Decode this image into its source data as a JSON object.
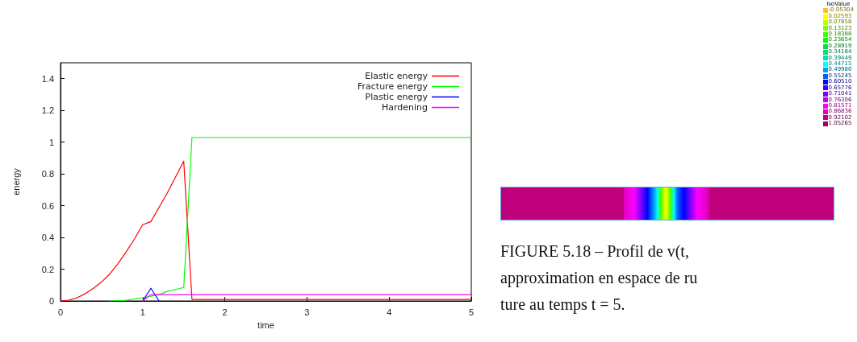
{
  "chart_data": [
    {
      "type": "line",
      "xlabel": "time",
      "ylabel": "energy",
      "xlim": [
        0,
        5
      ],
      "xticks": [
        0,
        1,
        2,
        3,
        4,
        5
      ],
      "ylim": [
        0,
        1.5
      ],
      "yticks": [
        0,
        0.2,
        0.4,
        0.6,
        0.8,
        1,
        1.2,
        1.4
      ],
      "grid": false,
      "legend": "top right",
      "marker": "none",
      "line_style": "solid",
      "series": [
        {
          "name": "Elastic energy",
          "color": "#ff0000",
          "x": [
            0,
            0.1,
            0.2,
            0.3,
            0.4,
            0.5,
            0.6,
            0.7,
            0.8,
            0.9,
            1.0,
            1.1,
            1.2,
            1.3,
            1.4,
            1.5,
            1.6,
            5
          ],
          "values": [
            0,
            0.005,
            0.02,
            0.045,
            0.08,
            0.12,
            0.17,
            0.235,
            0.31,
            0.39,
            0.48,
            0.5,
            0.59,
            0.68,
            0.78,
            0.88,
            0.01,
            0.01
          ]
        },
        {
          "name": "Fracture energy",
          "color": "#00ff00",
          "x": [
            0.6,
            0.8,
            1.0,
            1.1,
            1.2,
            1.3,
            1.5,
            1.6,
            5
          ],
          "values": [
            0,
            0.005,
            0.02,
            0.03,
            0.04,
            0.06,
            0.085,
            1.03,
            1.03
          ]
        },
        {
          "name": "Plastic energy",
          "color": "#0000ff",
          "x": [
            1.0,
            1.1,
            1.2
          ],
          "values": [
            0,
            0.08,
            0
          ]
        },
        {
          "name": "Hardening",
          "color": "#ff00ff",
          "x": [
            1.0,
            1.1,
            5
          ],
          "values": [
            0,
            0.04,
            0.04
          ]
        }
      ]
    },
    {
      "type": "other",
      "title": "IsoValue",
      "categories": [
        "-0.05304",
        "0.02593",
        "0.07858",
        "0.13123",
        "0.18388",
        "0.23654",
        "0.28919",
        "0.34184",
        "0.39449",
        "0.44715",
        "0.49980",
        "0.55245",
        "0.60510",
        "0.65776",
        "0.71041",
        "0.76306",
        "0.81571",
        "0.86836",
        "0.92102",
        "1.05265"
      ],
      "colors": [
        "#ffc020",
        "#ffff00",
        "#c0ff00",
        "#80ff00",
        "#40ff00",
        "#00ff00",
        "#00e040",
        "#00e080",
        "#00e0c0",
        "#00ffff",
        "#00a0ff",
        "#0060ff",
        "#0000ff",
        "#4000ff",
        "#8000ff",
        "#c000ff",
        "#ff00ff",
        "#e000c0",
        "#c00080",
        "#a00060"
      ],
      "annotations": [
        "FIGURE 5.18 – Profil de v(t,",
        "approximation en espace de ru",
        "ture au temps t = 5."
      ]
    }
  ]
}
